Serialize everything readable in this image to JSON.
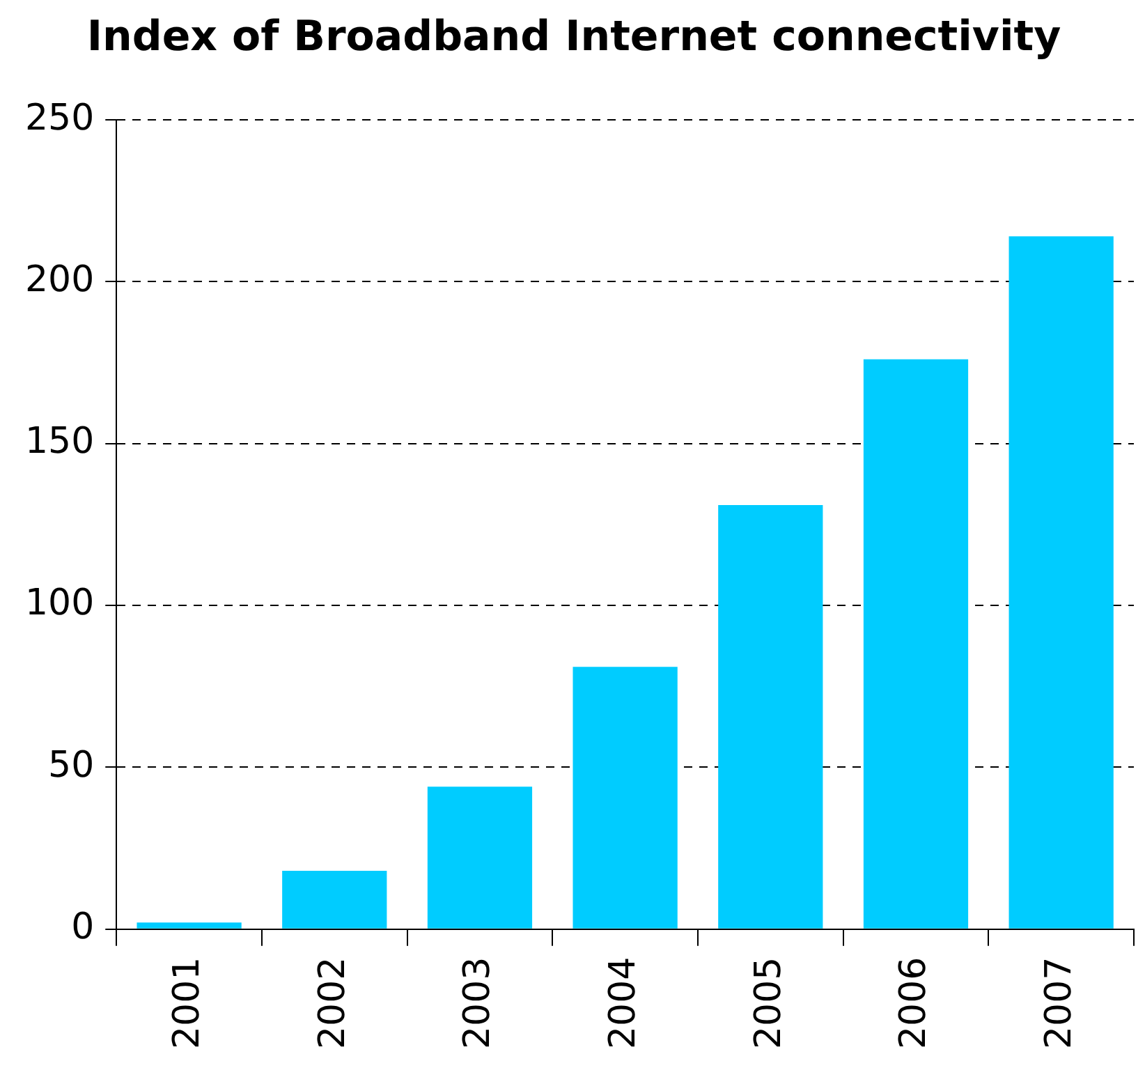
{
  "chart_data": {
    "type": "bar",
    "title": "Index of Broadband Internet connectivity",
    "categories": [
      "2001",
      "2002",
      "2003",
      "2004",
      "2005",
      "2006",
      "2007"
    ],
    "values": [
      2,
      18,
      44,
      81,
      131,
      176,
      214
    ],
    "color": "#00ccff",
    "ylim": [
      0,
      250
    ],
    "yticks": [
      0,
      50,
      100,
      150,
      200,
      250
    ],
    "grid": "y",
    "legend": false
  }
}
